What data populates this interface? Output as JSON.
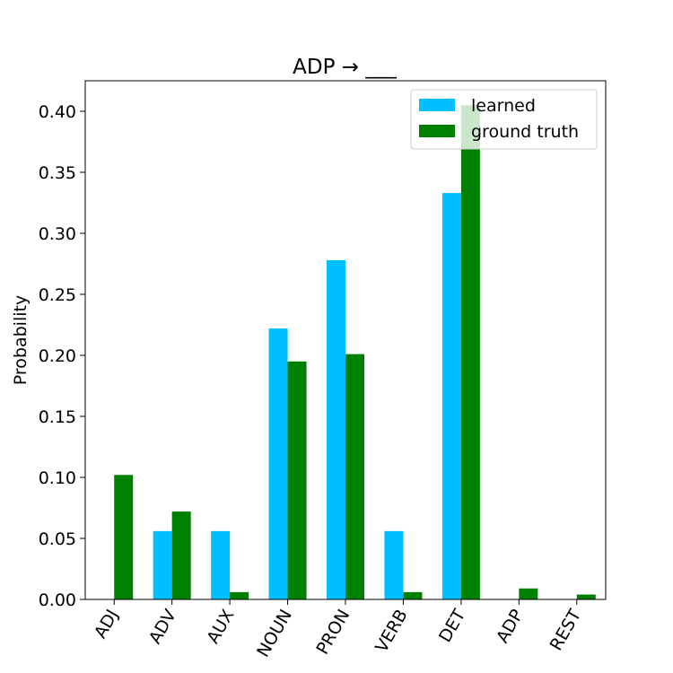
{
  "chart_data": {
    "type": "bar",
    "title": "ADP → ___",
    "xlabel": "",
    "ylabel": "Probability",
    "categories": [
      "ADJ",
      "ADV",
      "AUX",
      "NOUN",
      "PRON",
      "VERB",
      "DET",
      "ADP",
      "REST"
    ],
    "series": [
      {
        "name": "learned",
        "color": "#00bfff",
        "values": [
          0.0,
          0.056,
          0.056,
          0.222,
          0.278,
          0.056,
          0.333,
          0.0,
          0.0
        ]
      },
      {
        "name": "ground truth",
        "color": "#008000",
        "values": [
          0.102,
          0.072,
          0.006,
          0.195,
          0.201,
          0.006,
          0.405,
          0.009,
          0.004
        ]
      }
    ],
    "ylim": [
      0,
      0.425
    ],
    "yticks": [
      "0.00",
      "0.05",
      "0.10",
      "0.15",
      "0.20",
      "0.25",
      "0.30",
      "0.35",
      "0.40"
    ],
    "legend_position": "top-right",
    "grid": false
  }
}
